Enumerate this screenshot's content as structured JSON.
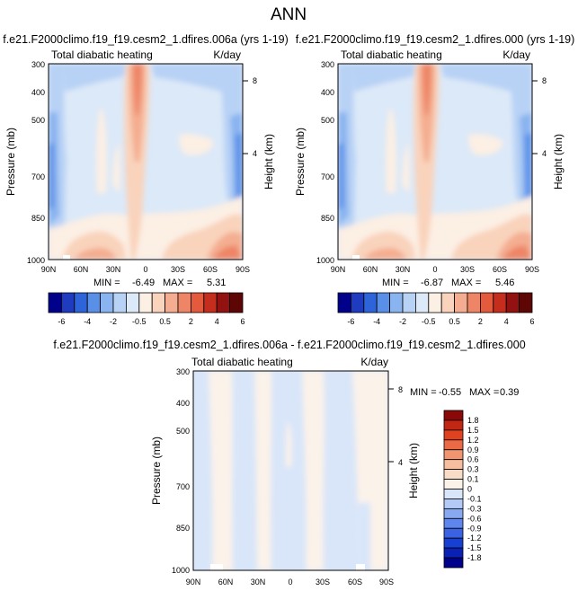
{
  "page_title": "ANN",
  "colors": {
    "panel_cb": [
      "#00008b",
      "#1f3bbf",
      "#2e64d9",
      "#5a8fe8",
      "#8ab4f0",
      "#b8d2f5",
      "#dce9f8",
      "#fcefe4",
      "#f9d3bc",
      "#f4ad90",
      "#ee8566",
      "#e35a3c",
      "#c52d1d",
      "#921111",
      "#5e0505"
    ],
    "diff_cb": [
      "#00008b",
      "#0b20b4",
      "#173fd1",
      "#3a62e3",
      "#5f86ec",
      "#88a9f2",
      "#b3c9f6",
      "#d9e6f9",
      "#fbf2ea",
      "#f9dcc8",
      "#f6bd9e",
      "#f19470",
      "#eb6a45",
      "#e0421f",
      "#c12712",
      "#8a0808"
    ]
  },
  "chart_data": [
    {
      "type": "heatmap",
      "title": "f.e21.F2000climo.f19_f19.cesm2_1.dfires.006a (yrs 1-19)",
      "left_label": "Total diabatic heating",
      "right_label": "K/day",
      "ylabel": "Pressure (mb)",
      "ylabel_right": "Height (km)",
      "x_ticks": [
        "90N",
        "60N",
        "30N",
        "0",
        "30S",
        "60S",
        "90S"
      ],
      "y_ticks": [
        "300",
        "400",
        "500",
        "700",
        "850",
        "1000"
      ],
      "y_ticks_right": [
        "8",
        "4"
      ],
      "min_label": "MIN =",
      "min_value": "-6.49",
      "max_label": "MAX =",
      "max_value": "5.31",
      "colorbar_levels": [
        "-6",
        "-4",
        "-2",
        "-0.5",
        "0.5",
        "2",
        "4",
        "6"
      ],
      "ylim": [
        1000,
        300
      ]
    },
    {
      "type": "heatmap",
      "title": "f.e21.F2000climo.f19_f19.cesm2_1.dfires.000 (yrs 1-19)",
      "left_label": "Total diabatic heating",
      "right_label": "K/day",
      "ylabel": "Pressure (mb)",
      "ylabel_right": "Height (km)",
      "x_ticks": [
        "90N",
        "60N",
        "30N",
        "0",
        "30S",
        "60S",
        "90S"
      ],
      "y_ticks": [
        "300",
        "400",
        "500",
        "700",
        "850",
        "1000"
      ],
      "y_ticks_right": [
        "8",
        "4"
      ],
      "min_label": "MIN =",
      "min_value": "-6.87",
      "max_label": "MAX =",
      "max_value": "5.46",
      "colorbar_levels": [
        "-6",
        "-4",
        "-2",
        "-0.5",
        "0.5",
        "2",
        "4",
        "6"
      ],
      "ylim": [
        1000,
        300
      ]
    },
    {
      "type": "heatmap",
      "title": "f.e21.F2000climo.f19_f19.cesm2_1.dfires.006a - f.e21.F2000climo.f19_f19.cesm2_1.dfires.000",
      "left_label": "Total diabatic heating",
      "right_label": "K/day",
      "ylabel": "Pressure (mb)",
      "ylabel_right": "Height (km)",
      "x_ticks": [
        "90N",
        "60N",
        "30N",
        "0",
        "30S",
        "60S",
        "90S"
      ],
      "y_ticks": [
        "300",
        "400",
        "500",
        "700",
        "850",
        "1000"
      ],
      "y_ticks_right": [
        "8",
        "4"
      ],
      "min_label": "MIN =",
      "min_value": "-0.55",
      "max_label": "MAX =",
      "max_value": "0.39",
      "colorbar_levels": [
        "1.8",
        "1.5",
        "1.2",
        "0.9",
        "0.6",
        "0.3",
        "0.1",
        "0",
        "-0.1",
        "-0.3",
        "-0.6",
        "-0.9",
        "-1.2",
        "-1.5",
        "-1.8"
      ],
      "ylim": [
        1000,
        300
      ]
    }
  ]
}
